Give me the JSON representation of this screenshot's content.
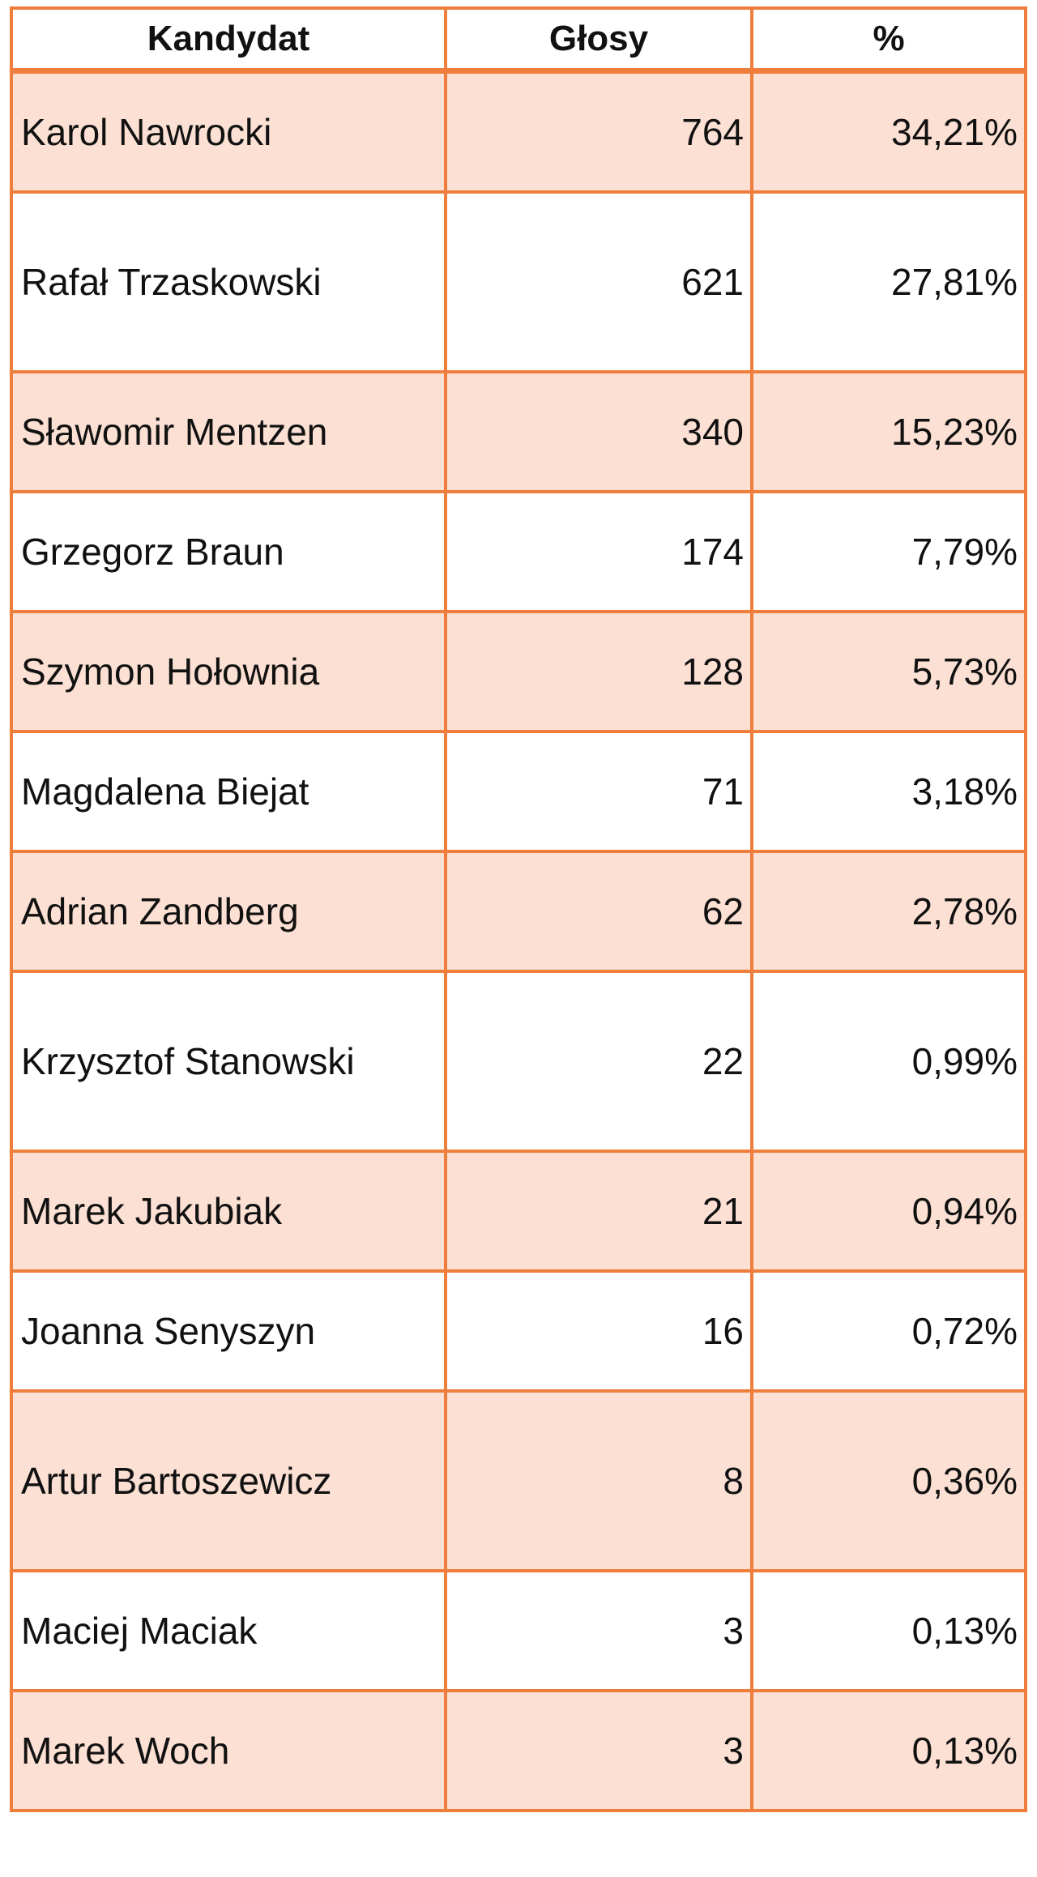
{
  "chart_data": {
    "type": "table",
    "columns": [
      "Kandydat",
      "Głosy",
      "%"
    ],
    "rows": [
      {
        "name": "Karol Nawrocki",
        "votes": "764",
        "pct": "34,21%"
      },
      {
        "name": "Rafał Trzaskowski",
        "votes": "621",
        "pct": "27,81%"
      },
      {
        "name": "Sławomir Mentzen",
        "votes": "340",
        "pct": "15,23%"
      },
      {
        "name": "Grzegorz Braun",
        "votes": "174",
        "pct": "7,79%"
      },
      {
        "name": "Szymon Hołownia",
        "votes": "128",
        "pct": "5,73%"
      },
      {
        "name": "Magdalena Biejat",
        "votes": "71",
        "pct": "3,18%"
      },
      {
        "name": "Adrian Zandberg",
        "votes": "62",
        "pct": "2,78%"
      },
      {
        "name": "Krzysztof Stanowski",
        "votes": "22",
        "pct": "0,99%"
      },
      {
        "name": "Marek Jakubiak",
        "votes": "21",
        "pct": "0,94%"
      },
      {
        "name": "Joanna Senyszyn",
        "votes": "16",
        "pct": "0,72%"
      },
      {
        "name": "Artur Bartoszewicz",
        "votes": "8",
        "pct": "0,36%"
      },
      {
        "name": "Maciej Maciak",
        "votes": "3",
        "pct": "0,13%"
      },
      {
        "name": "Marek Woch",
        "votes": "3",
        "pct": "0,13%"
      }
    ]
  },
  "colors": {
    "border": "#ef7d3c",
    "shaded_row": "#fbe0d3",
    "plain_row": "#ffffff"
  }
}
